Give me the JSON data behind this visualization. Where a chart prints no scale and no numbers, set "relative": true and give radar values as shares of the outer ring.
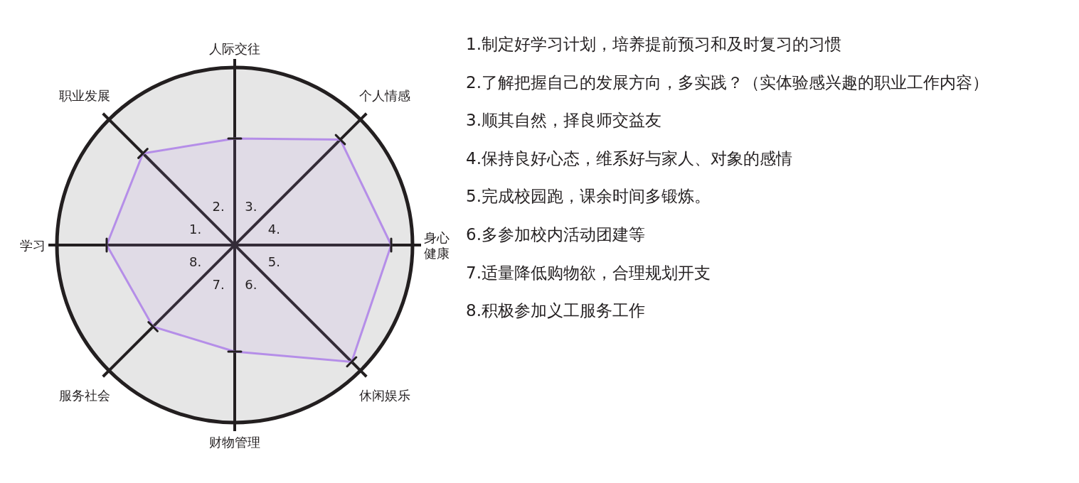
{
  "chart_data": {
    "type": "radar",
    "relative": true,
    "categories": [
      "人际交往",
      "个人情感",
      "身心健康",
      "休闲娱乐",
      "财物管理",
      "服务社会",
      "学习",
      "职业发展"
    ],
    "series": [
      {
        "color": "#b58ee8",
        "values": [
          0.6,
          0.84,
          0.88,
          0.93,
          0.6,
          0.65,
          0.72,
          0.73
        ]
      }
    ],
    "marker": "cross",
    "annotations": [
      {
        "text": "3.",
        "x": "人际交往"
      },
      {
        "text": "4.",
        "x": "个人情感"
      },
      {
        "text": "5.",
        "x": "身心健康"
      },
      {
        "text": "6.",
        "x": "休闲娱乐"
      },
      {
        "text": "7.",
        "x": "财物管理"
      },
      {
        "text": "8.",
        "x": "服务社会"
      },
      {
        "text": "1.",
        "x": "学习"
      },
      {
        "text": "2.",
        "x": "职业发展"
      },
      "1.制定好学习计划，培养提前预习和及时复习的习惯",
      "2.了解把握自己的发展方向，多实践？（实体验感兴趣的职业工作内容）",
      "3.顺其自然，择良师交益友",
      "4.保持良好心态，维系好与家人、对象的感情",
      "5.完成校园跑，课余时间多锻炼。",
      "6.多参加校内活动团建等",
      "7.适量降低购物欲，合理规划开支",
      "8.积极参加义工服务工作"
    ]
  }
}
